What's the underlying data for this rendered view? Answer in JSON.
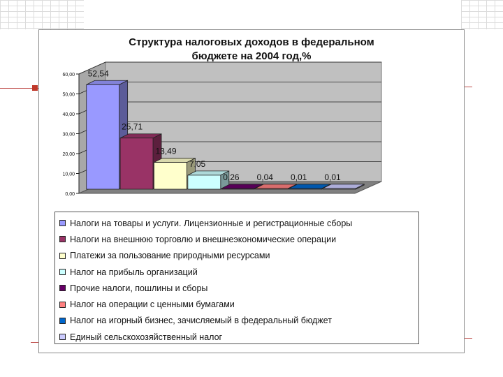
{
  "chart_data": {
    "type": "bar",
    "title": "Структура налоговых доходов в федеральном бюджете на 2004 год,%",
    "title_lines": [
      "Структура налоговых доходов в федеральном",
      "бюджете на 2004 год,%"
    ],
    "ylim": [
      0,
      60
    ],
    "yticks": [
      "0,00",
      "10,00",
      "20,00",
      "30,00",
      "40,00",
      "50,00",
      "60,00"
    ],
    "grid": true,
    "legend_position": "bottom",
    "series": [
      {
        "name": "Налоги на товары и услуги. Лицензионные и регистрационные сборы",
        "value": 52.54,
        "label": "52,54",
        "color": "#9999ff"
      },
      {
        "name": "Налоги на внешнюю торговлю и внешнеэкономические операции",
        "value": 25.71,
        "label": "25,71",
        "color": "#993366"
      },
      {
        "name": "Платежи за пользование природными ресурсами",
        "value": 13.49,
        "label": "13,49",
        "color": "#ffffcc"
      },
      {
        "name": "Налог на прибыль организаций",
        "value": 7.05,
        "label": "7,05",
        "color": "#ccffff"
      },
      {
        "name": "Прочие налоги, пошлины и сборы",
        "value": 0.26,
        "label": "0,26",
        "color": "#660066"
      },
      {
        "name": "Налог на операции с ценными бумагами",
        "value": 0.04,
        "label": "0,04",
        "color": "#ff8080"
      },
      {
        "name": "Налог на игорный бизнес, зачисляемый в федеральный бюджет",
        "value": 0.01,
        "label": "0,01",
        "color": "#0066cc"
      },
      {
        "name": "Единый сельскохозяйственный налог",
        "value": 0.01,
        "label": "0,01",
        "color": "#ccccff"
      }
    ]
  }
}
